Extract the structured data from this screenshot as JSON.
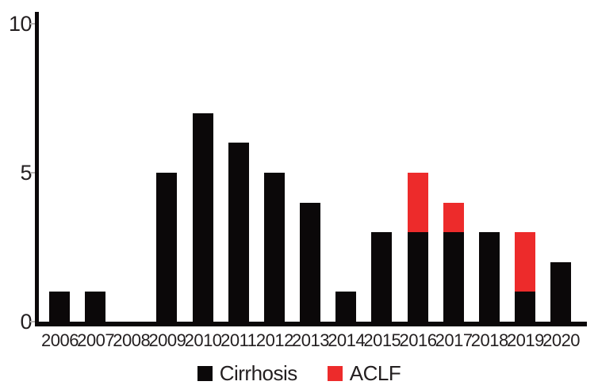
{
  "chart_data": {
    "type": "bar",
    "stacked": true,
    "title": "",
    "xlabel": "",
    "ylabel": "",
    "categories": [
      "2006",
      "2007",
      "2008",
      "2009",
      "2010",
      "2011",
      "2012",
      "2013",
      "2014",
      "2015",
      "2016",
      "2017",
      "2018",
      "2019",
      "2020"
    ],
    "series": [
      {
        "name": "Cirrhosis",
        "color": "#0b0809",
        "values": [
          1,
          1,
          0,
          5,
          7,
          6,
          5,
          4,
          1,
          3,
          3,
          3,
          3,
          1,
          2
        ]
      },
      {
        "name": "ACLF",
        "color": "#ed2b2b",
        "values": [
          0,
          0,
          0,
          0,
          0,
          0,
          0,
          0,
          0,
          0,
          2,
          1,
          0,
          2,
          0
        ]
      }
    ],
    "ylim": [
      0,
      10
    ],
    "yticks": [
      0,
      5,
      10
    ],
    "grid": false,
    "legend_position": "bottom",
    "axis_color": "#0b0809",
    "tick_label_color": "#231f20"
  }
}
